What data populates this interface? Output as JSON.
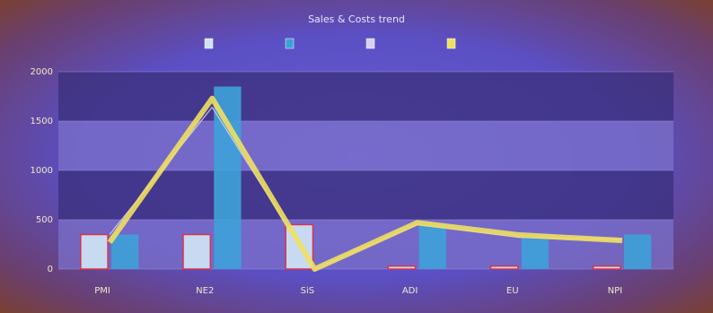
{
  "chart_data": {
    "type": "bar-line",
    "title": "Sales & Costs trend",
    "categories": [
      "PMI",
      "NE2",
      "SiS",
      "ADI",
      "EU",
      "NPI"
    ],
    "ylim": [
      0,
      2000
    ],
    "yticks": [
      0,
      500,
      1000,
      1500,
      2000
    ],
    "series": [
      {
        "kind": "bar",
        "color": "#cfe4f5",
        "values": [
          350,
          350,
          450,
          30,
          30,
          30
        ]
      },
      {
        "kind": "bar",
        "color": "#3f9fd8",
        "values": [
          350,
          1850,
          0,
          450,
          320,
          350
        ]
      },
      {
        "kind": "line",
        "color": "#d8d0f0",
        "values": [
          350,
          1640,
          0,
          450,
          320,
          300
        ]
      },
      {
        "kind": "line",
        "color": "#f0e060",
        "values": [
          270,
          1730,
          0,
          470,
          345,
          290
        ]
      }
    ]
  }
}
